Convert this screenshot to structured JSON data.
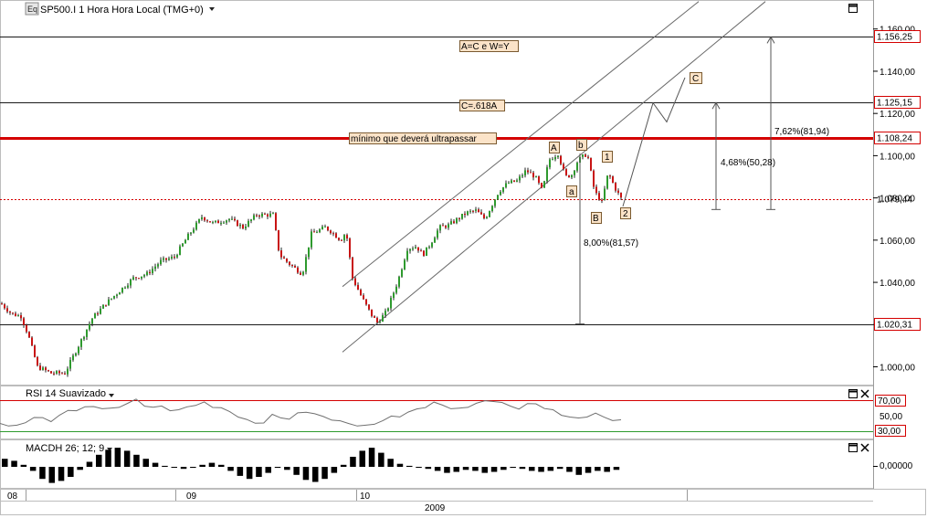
{
  "header": {
    "logo": "Eq",
    "symbol_label": "SP500.I 1 Hora Hora Local (TMG+0)"
  },
  "rsi_panel": {
    "title": "RSI 14 Suavizado",
    "levels": [
      "70,00",
      "50,00",
      "30,00"
    ]
  },
  "macd_panel": {
    "title": "MACDH 26; 12; 9",
    "level": "0,00000"
  },
  "time_axis": {
    "labels": [
      "08",
      "09",
      "10"
    ],
    "year": "2009"
  },
  "annotations": {
    "ac_wy": "A=C e W=Y",
    "c618": "C=.618A",
    "minimum": "mínimo que deverá ultrapassar",
    "pct_762": "7,62%(81,94)",
    "pct_468": "4,68%(50,28)",
    "pct_800": "8,00%(81,57)",
    "wave_A": "A",
    "wave_b": "b",
    "wave_a": "a",
    "wave_B": "B",
    "wave_1": "1",
    "wave_2": "2",
    "wave_C": "C"
  },
  "colors": {
    "background": "#ffffff",
    "up_candle": "#2e9a2e",
    "down_candle": "#c81414",
    "resistance_line": "#d40000",
    "price_tag_border": "#d40000",
    "annotation_fill": "#fbe3c8",
    "rsi_line": "#707070",
    "macd_bar": "#000000"
  },
  "chart_data": {
    "type": "candlestick",
    "title": "SP500.I 1 Hora Hora Local (TMG+0)",
    "y_axis": {
      "ticks": [
        "1.000,00",
        "1.020,00",
        "1.040,00",
        "1.060,00",
        "1.080,00",
        "1.100,00",
        "1.120,00",
        "1.140,00",
        "1.160,00"
      ],
      "range": [
        992,
        1172
      ]
    },
    "horizontal_levels": [
      {
        "value": 1156.25,
        "label": "1.156,25",
        "style": "solid-dark"
      },
      {
        "value": 1125.15,
        "label": "1.125,15",
        "style": "solid-dark"
      },
      {
        "value": 1108.24,
        "label": "1.108,24",
        "style": "solid-red-thick"
      },
      {
        "value": 1079.44,
        "label": "1.079,44",
        "style": "dotted-red-current"
      },
      {
        "value": 1020.31,
        "label": "1.020,31",
        "style": "solid-dark"
      }
    ],
    "price_path": [
      [
        0,
        1030
      ],
      [
        12,
        1025
      ],
      [
        22,
        1024
      ],
      [
        30,
        1015
      ],
      [
        40,
        1000
      ],
      [
        55,
        997
      ],
      [
        70,
        997
      ],
      [
        85,
        1010
      ],
      [
        100,
        1023
      ],
      [
        115,
        1030
      ],
      [
        130,
        1036
      ],
      [
        145,
        1042
      ],
      [
        160,
        1044
      ],
      [
        175,
        1050
      ],
      [
        190,
        1052
      ],
      [
        205,
        1062
      ],
      [
        220,
        1071
      ],
      [
        232,
        1068
      ],
      [
        250,
        1070
      ],
      [
        265,
        1066
      ],
      [
        280,
        1072
      ],
      [
        298,
        1072
      ],
      [
        305,
        1053
      ],
      [
        315,
        1049
      ],
      [
        330,
        1044
      ],
      [
        340,
        1063
      ],
      [
        355,
        1066
      ],
      [
        362,
        1064
      ],
      [
        372,
        1060
      ],
      [
        378,
        1064
      ],
      [
        385,
        1042
      ],
      [
        395,
        1033
      ],
      [
        405,
        1025
      ],
      [
        412,
        1021
      ],
      [
        422,
        1026
      ],
      [
        435,
        1041
      ],
      [
        445,
        1056
      ],
      [
        455,
        1057
      ],
      [
        462,
        1053
      ],
      [
        470,
        1058
      ],
      [
        480,
        1066
      ],
      [
        490,
        1067
      ],
      [
        500,
        1070
      ],
      [
        510,
        1073
      ],
      [
        520,
        1074
      ],
      [
        530,
        1070
      ],
      [
        545,
        1083
      ],
      [
        555,
        1087
      ],
      [
        565,
        1088
      ],
      [
        575,
        1093
      ],
      [
        585,
        1090
      ],
      [
        593,
        1083
      ],
      [
        600,
        1098
      ],
      [
        610,
        1101
      ],
      [
        618,
        1090
      ],
      [
        625,
        1091
      ],
      [
        632,
        1098
      ],
      [
        642,
        1101
      ],
      [
        650,
        1083
      ],
      [
        658,
        1078
      ],
      [
        665,
        1092
      ],
      [
        672,
        1085
      ],
      [
        680,
        1079
      ]
    ],
    "projection_path": [
      [
        682,
        1076
      ],
      [
        715,
        1125
      ],
      [
        730,
        1116
      ],
      [
        750,
        1137
      ]
    ],
    "channel": {
      "upper": [
        [
          375,
          1038
        ],
        [
          765,
          1173
        ]
      ],
      "lower": [
        [
          375,
          1007
        ],
        [
          838,
          1173
        ]
      ]
    },
    "rsi": {
      "range": [
        0,
        100
      ],
      "levels": [
        70,
        50,
        30
      ],
      "values": [
        40,
        38,
        36,
        42,
        48,
        46,
        44,
        50,
        56,
        58,
        60,
        62,
        60,
        58,
        62,
        66,
        70,
        64,
        60,
        62,
        58,
        56,
        62,
        64,
        66,
        62,
        60,
        54,
        50,
        44,
        40,
        42,
        50,
        48,
        46,
        52,
        56,
        52,
        48,
        46,
        42,
        40,
        38,
        36,
        40,
        44,
        48,
        50,
        54,
        58,
        62,
        66,
        64,
        60,
        58,
        62,
        66,
        68,
        70,
        66,
        62,
        60,
        64,
        66,
        60,
        56,
        52,
        48,
        46,
        50,
        52,
        48,
        45,
        43
      ]
    },
    "macd_histogram": {
      "values": [
        0.8,
        0.6,
        0.2,
        -0.4,
        -1.2,
        -1.6,
        -1.4,
        -1.0,
        -0.3,
        0.5,
        1.2,
        1.7,
        1.9,
        1.6,
        1.2,
        0.8,
        0.4,
        0.1,
        0,
        -0.2,
        -0.1,
        0.2,
        0.4,
        0.2,
        -0.4,
        -0.9,
        -1.2,
        -1.0,
        -0.6,
        -0.1,
        -0.3,
        -0.8,
        -1.3,
        -1.5,
        -1.2,
        -0.6,
        0.2,
        1.0,
        1.6,
        1.9,
        1.4,
        0.8,
        0.3,
        0.1,
        0,
        -0.2,
        -0.4,
        -0.6,
        -0.5,
        -0.3,
        -0.4,
        -0.6,
        -0.5,
        -0.3,
        -0.1,
        -0.2,
        -0.4,
        -0.5,
        -0.4,
        -0.2,
        -0.5,
        -0.8,
        -0.6,
        -0.4,
        -0.5,
        -0.3
      ]
    }
  }
}
